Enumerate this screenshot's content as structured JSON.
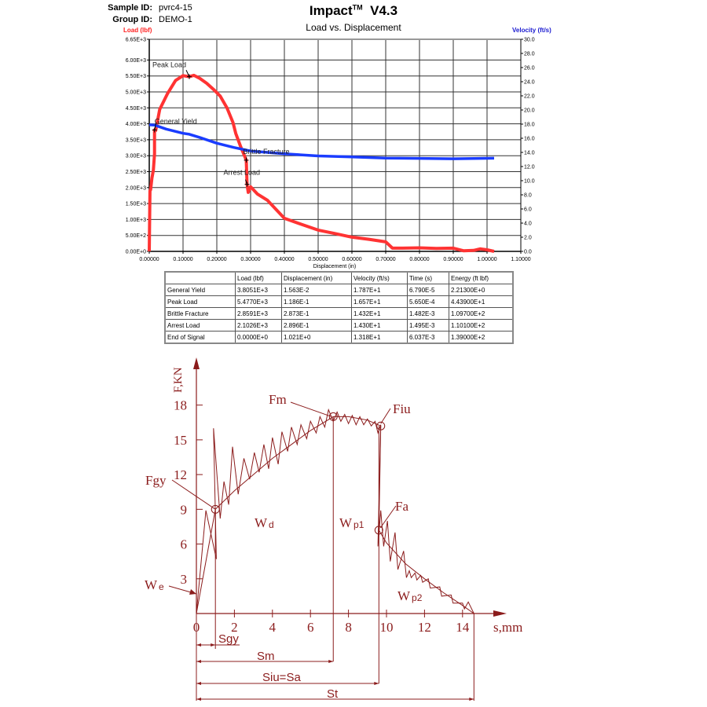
{
  "header": {
    "sample_id_label": "Sample ID:",
    "sample_id": "pvrc4-15",
    "group_id_label": "Group ID:",
    "group_id": "DEMO-1",
    "title": "Impact",
    "title_sup": "TM",
    "version": "V4.3"
  },
  "results_table": {
    "columns": [
      "",
      "Load (lbf)",
      "Displacement (in)",
      "Velocity (ft/s)",
      "Time (s)",
      "Energy (ft lbf)"
    ],
    "rows": [
      [
        "General Yield",
        "3.8051E+3",
        "1.563E-2",
        "1.787E+1",
        "6.790E-5",
        "2.21300E+0"
      ],
      [
        "Peak Load",
        "5.4770E+3",
        "1.186E-1",
        "1.657E+1",
        "5.650E-4",
        "4.43900E+1"
      ],
      [
        "Brittle Fracture",
        "2.8591E+3",
        "2.873E-1",
        "1.432E+1",
        "1.482E-3",
        "1.09700E+2"
      ],
      [
        "Arrest Load",
        "2.1026E+3",
        "2.896E-1",
        "1.430E+1",
        "1.495E-3",
        "1.10100E+2"
      ],
      [
        "End of Signal",
        "0.0000E+0",
        "1.021E+0",
        "1.318E+1",
        "6.037E-3",
        "1.39000E+2"
      ]
    ]
  },
  "chart_data": [
    {
      "type": "line",
      "title": "Load vs. Displacement",
      "xlabel": "Displacement (in)",
      "ylabel_left": "Load (lbf)",
      "ylabel_right": "Velocity (ft/s)",
      "xlim": [
        0,
        1.1
      ],
      "ylim_left": [
        0,
        6650
      ],
      "ylim_right": [
        0,
        30
      ],
      "grid": true,
      "x_ticks": [
        "0.00000",
        "0.10000",
        "0.20000",
        "0.30000",
        "0.40000",
        "0.50000",
        "0.60000",
        "0.70000",
        "0.80000",
        "0.90000",
        "1.00000",
        "1.10000"
      ],
      "y_left_ticks": [
        "0.00E+0",
        "5.00E+2",
        "1.00E+3",
        "1.50E+3",
        "2.00E+3",
        "2.50E+3",
        "3.00E+3",
        "3.50E+3",
        "4.00E+3",
        "4.50E+3",
        "5.00E+3",
        "5.50E+3",
        "6.00E+3",
        "6.65E+3"
      ],
      "y_right_ticks": [
        "0.0",
        "2.0",
        "4.0",
        "6.0",
        "8.0",
        "10.0",
        "12.0",
        "14.0",
        "16.0",
        "18.0",
        "20.0",
        "22.0",
        "24.0",
        "26.0",
        "28.0",
        "30.0"
      ],
      "colors": {
        "load": "#ff3333",
        "velocity": "#1a3cff"
      },
      "series": [
        {
          "name": "Load (lbf)",
          "axis": "left",
          "points": [
            [
              0,
              0
            ],
            [
              0.002,
              1900
            ],
            [
              0.004,
              1930
            ],
            [
              0.008,
              2300
            ],
            [
              0.012,
              2540
            ],
            [
              0.0155,
              3050
            ],
            [
              0.0156,
              3805
            ],
            [
              0.019,
              3790
            ],
            [
              0.031,
              4450
            ],
            [
              0.054,
              4945
            ],
            [
              0.078,
              5360
            ],
            [
              0.1,
              5510
            ],
            [
              0.1186,
              5477
            ],
            [
              0.132,
              5520
            ],
            [
              0.15,
              5420
            ],
            [
              0.17,
              5270
            ],
            [
              0.19,
              5080
            ],
            [
              0.21,
              4870
            ],
            [
              0.23,
              4500
            ],
            [
              0.248,
              4040
            ],
            [
              0.256,
              3700
            ],
            [
              0.27,
              3300
            ],
            [
              0.2873,
              2859
            ],
            [
              0.2896,
              2103
            ],
            [
              0.293,
              1850
            ],
            [
              0.3,
              2027
            ],
            [
              0.32,
              1800
            ],
            [
              0.35,
              1600
            ],
            [
              0.4,
              1038
            ],
            [
              0.45,
              850
            ],
            [
              0.5,
              667
            ],
            [
              0.55,
              560
            ],
            [
              0.6,
              445
            ],
            [
              0.65,
              380
            ],
            [
              0.7,
              297
            ],
            [
              0.72,
              100
            ],
            [
              0.75,
              100
            ],
            [
              0.8,
              110
            ],
            [
              0.85,
              90
            ],
            [
              0.9,
              100
            ],
            [
              0.93,
              20
            ],
            [
              0.96,
              30
            ],
            [
              0.98,
              80
            ],
            [
              1.0,
              50
            ],
            [
              1.021,
              0
            ]
          ]
        },
        {
          "name": "Velocity (ft/s)",
          "axis": "right",
          "points": [
            [
              0,
              17.9
            ],
            [
              0.0156,
              17.87
            ],
            [
              0.05,
              17.3
            ],
            [
              0.1,
              16.7
            ],
            [
              0.1186,
              16.57
            ],
            [
              0.15,
              16.1
            ],
            [
              0.2,
              15.3
            ],
            [
              0.25,
              14.7
            ],
            [
              0.2873,
              14.32
            ],
            [
              0.3,
              14.2
            ],
            [
              0.4,
              13.8
            ],
            [
              0.5,
              13.5
            ],
            [
              0.6,
              13.35
            ],
            [
              0.7,
              13.2
            ],
            [
              0.8,
              13.15
            ],
            [
              0.9,
              13.1
            ],
            [
              1.021,
              13.18
            ]
          ]
        }
      ],
      "annotations": [
        {
          "label": "General Yield",
          "x": 0.01563,
          "y": 3805.1
        },
        {
          "label": "Peak Load",
          "x": 0.1186,
          "y": 5477
        },
        {
          "label": "Brittle Fracture",
          "x": 0.2873,
          "y": 2859.1
        },
        {
          "label": "Arrest Load",
          "x": 0.2896,
          "y": 2102.6
        }
      ]
    },
    {
      "type": "line",
      "xlabel": "s,mm",
      "ylabel": "F,KN",
      "xlim": [
        0,
        15
      ],
      "ylim": [
        0,
        20
      ],
      "x_ticks": [
        "0",
        "2",
        "4",
        "6",
        "8",
        "10",
        "12",
        "14"
      ],
      "y_ticks": [
        "3",
        "6",
        "9",
        "12",
        "15",
        "18"
      ],
      "color": "#8b1c1c",
      "smooth_curve": [
        [
          0,
          0
        ],
        [
          1.0,
          9.0
        ],
        [
          2,
          10.6
        ],
        [
          3,
          12.0
        ],
        [
          4,
          13.4
        ],
        [
          5,
          14.6
        ],
        [
          6,
          15.8
        ],
        [
          7,
          16.8
        ],
        [
          7.2,
          17.0
        ],
        [
          8,
          17.0
        ],
        [
          9,
          16.7
        ],
        [
          9.7,
          16.2
        ],
        [
          9.6,
          7.2
        ],
        [
          10,
          6.1
        ],
        [
          11,
          4.3
        ],
        [
          12,
          3.0
        ],
        [
          13,
          1.8
        ],
        [
          14,
          0.7
        ],
        [
          14.6,
          0
        ]
      ],
      "trace": [
        [
          0,
          0
        ],
        [
          0.5,
          8.9
        ],
        [
          1.05,
          4.7
        ],
        [
          0.9,
          16.0
        ],
        [
          1.25,
          8.2
        ],
        [
          1.45,
          11.4
        ],
        [
          1.7,
          9.4
        ],
        [
          1.9,
          14.4
        ],
        [
          2.2,
          10.3
        ],
        [
          2.5,
          13.4
        ],
        [
          2.8,
          11.6
        ],
        [
          3.05,
          13.9
        ],
        [
          3.3,
          12.2
        ],
        [
          3.55,
          14.6
        ],
        [
          3.8,
          12.5
        ],
        [
          4.0,
          15.2
        ],
        [
          4.3,
          12.9
        ],
        [
          4.5,
          15.7
        ],
        [
          4.8,
          14.0
        ],
        [
          5.0,
          16.1
        ],
        [
          5.3,
          14.6
        ],
        [
          5.5,
          16.3
        ],
        [
          5.8,
          15.1
        ],
        [
          6.0,
          16.6
        ],
        [
          6.3,
          15.6
        ],
        [
          6.5,
          17.0
        ],
        [
          6.75,
          16.1
        ],
        [
          6.95,
          17.6
        ],
        [
          7.2,
          16.6
        ],
        [
          7.4,
          17.4
        ],
        [
          7.6,
          16.6
        ],
        [
          7.8,
          17.2
        ],
        [
          8.0,
          16.4
        ],
        [
          8.2,
          17.1
        ],
        [
          8.4,
          16.3
        ],
        [
          8.6,
          17.0
        ],
        [
          8.8,
          16.3
        ],
        [
          9.0,
          16.8
        ],
        [
          9.2,
          16.2
        ],
        [
          9.4,
          16.6
        ],
        [
          9.55,
          15.6
        ],
        [
          9.7,
          16.3
        ],
        [
          9.55,
          5.8
        ],
        [
          9.7,
          8.9
        ],
        [
          9.85,
          5.8
        ],
        [
          10.05,
          8.0
        ],
        [
          10.2,
          4.5
        ],
        [
          10.45,
          7.0
        ],
        [
          10.6,
          3.8
        ],
        [
          10.9,
          5.4
        ],
        [
          11.05,
          3.1
        ],
        [
          11.2,
          3.7
        ],
        [
          11.3,
          3.1
        ],
        [
          11.5,
          3.5
        ],
        [
          11.6,
          2.9
        ],
        [
          11.8,
          3.3
        ],
        [
          11.9,
          2.7
        ],
        [
          12.2,
          3.0
        ],
        [
          12.3,
          2.2
        ],
        [
          12.8,
          2.3
        ],
        [
          12.9,
          1.5
        ],
        [
          13.4,
          1.6
        ],
        [
          13.5,
          0.9
        ],
        [
          14.0,
          0.9
        ],
        [
          14.1,
          0.4
        ],
        [
          14.3,
          1.0
        ],
        [
          14.6,
          0
        ]
      ],
      "points": [
        {
          "label": "Fgy",
          "x": 1.0,
          "y": 9.0
        },
        {
          "label": "Fm",
          "x": 7.2,
          "y": 17.0
        },
        {
          "label": "Fiu",
          "x": 9.7,
          "y": 16.2
        },
        {
          "label": "Fa",
          "x": 9.6,
          "y": 7.2
        }
      ],
      "regions": {
        "we": "W",
        "we_sub": "e",
        "wd": "W",
        "wd_sub": "d",
        "wp1": "W",
        "wp1_sub": "p1",
        "wp2": "W",
        "wp2_sub": "p2"
      },
      "dimensions": [
        {
          "label": "Sgy",
          "from": 0,
          "to": 1.0
        },
        {
          "label": "Sm",
          "from": 0,
          "to": 7.2
        },
        {
          "label": "Siu=Sa",
          "label_main": "S",
          "label_sub1": "iu",
          "label_eq": "=S",
          "label_sub2": "a",
          "from": 0,
          "to": 9.6
        },
        {
          "label": "St",
          "from": 0,
          "to": 14.6
        }
      ]
    }
  ]
}
